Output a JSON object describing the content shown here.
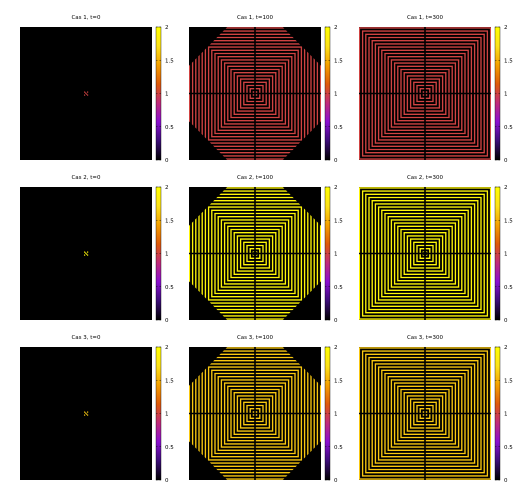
{
  "colormap": {
    "name": "gnuplot-pm3d-default",
    "stops": [
      "#000000",
      "#3c0e78",
      "#8a0fd1",
      "#c12b7a",
      "#df5a0a",
      "#f4a000",
      "#fde21a",
      "#ffff00"
    ]
  },
  "chart_data": [
    {
      "type": "heatmap",
      "title": "Cas 1, t=0",
      "case": 1,
      "t": 0,
      "shape": "seed",
      "fill_value": 1.0,
      "cbrange": [
        0,
        2
      ],
      "cbticks": [
        "0",
        "0.5",
        "1",
        "1.5",
        "2"
      ],
      "center_dot": false
    },
    {
      "type": "heatmap",
      "title": "Cas 1, t=100",
      "case": 1,
      "t": 100,
      "shape": "octagon",
      "fill_value": 1.0,
      "cbrange": [
        0,
        2
      ],
      "cbticks": [
        "0",
        "0.5",
        "1",
        "1.5",
        "2"
      ],
      "center_dot": false
    },
    {
      "type": "heatmap",
      "title": "Cas 1, t=300",
      "case": 1,
      "t": 300,
      "shape": "square",
      "fill_value": 1.0,
      "cbrange": [
        0,
        2
      ],
      "cbticks": [
        "0",
        "0.5",
        "1",
        "1.5",
        "2"
      ],
      "center_dot": false
    },
    {
      "type": "heatmap",
      "title": "Cas 2, t=0",
      "case": 2,
      "t": 0,
      "shape": "seed",
      "fill_value": 1.9,
      "cbrange": [
        0,
        2
      ],
      "cbticks": [
        "0",
        "0.5",
        "1",
        "1.5",
        "2"
      ],
      "center_dot": false
    },
    {
      "type": "heatmap",
      "title": "Cas 2, t=100",
      "case": 2,
      "t": 100,
      "shape": "octagon",
      "fill_value": 1.9,
      "cbrange": [
        0,
        2
      ],
      "cbticks": [
        "0",
        "0.5",
        "1",
        "1.5",
        "2"
      ],
      "center_dot": true
    },
    {
      "type": "heatmap",
      "title": "Cas 2, t=300",
      "case": 2,
      "t": 300,
      "shape": "square",
      "fill_value": 1.9,
      "cbrange": [
        0,
        2
      ],
      "cbticks": [
        "0",
        "0.5",
        "1",
        "1.5",
        "2"
      ],
      "center_dot": true
    },
    {
      "type": "heatmap",
      "title": "Cas 3, t=0",
      "case": 3,
      "t": 0,
      "shape": "seed",
      "fill_value": 1.6,
      "cbrange": [
        0,
        2
      ],
      "cbticks": [
        "0",
        "0.5",
        "1",
        "1.5",
        "2"
      ],
      "center_dot": false
    },
    {
      "type": "heatmap",
      "title": "Cas 3, t=100",
      "case": 3,
      "t": 100,
      "shape": "octagon",
      "fill_value": 1.6,
      "cbrange": [
        0,
        2
      ],
      "cbticks": [
        "0",
        "0.5",
        "1",
        "1.5",
        "2"
      ],
      "center_dot": false
    },
    {
      "type": "heatmap",
      "title": "Cas 3, t=300",
      "case": 3,
      "t": 300,
      "shape": "square",
      "fill_value": 1.6,
      "cbrange": [
        0,
        2
      ],
      "cbticks": [
        "0",
        "0.5",
        "1",
        "1.5",
        "2"
      ],
      "center_dot": false
    }
  ]
}
